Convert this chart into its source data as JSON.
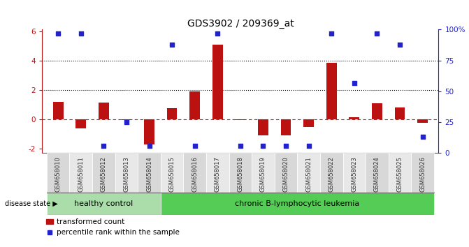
{
  "title": "GDS3902 / 209369_at",
  "samples": [
    "GSM658010",
    "GSM658011",
    "GSM658012",
    "GSM658013",
    "GSM658014",
    "GSM658015",
    "GSM658016",
    "GSM658017",
    "GSM658018",
    "GSM658019",
    "GSM658020",
    "GSM658021",
    "GSM658022",
    "GSM658023",
    "GSM658024",
    "GSM658025",
    "GSM658026"
  ],
  "bar_values": [
    1.2,
    -0.6,
    1.15,
    -0.05,
    -1.7,
    0.75,
    1.9,
    5.1,
    -0.05,
    -1.1,
    -1.1,
    -0.5,
    3.85,
    0.12,
    1.1,
    0.8,
    -0.25
  ],
  "dot_values": [
    97,
    97,
    6,
    25,
    6,
    88,
    6,
    97,
    6,
    6,
    6,
    6,
    97,
    57,
    97,
    88,
    13
  ],
  "ylim_left": [
    -2.3,
    6.1
  ],
  "ylim_right": [
    0,
    100
  ],
  "yticks_left": [
    -2,
    0,
    2,
    4,
    6
  ],
  "yticks_right": [
    0,
    25,
    50,
    75,
    100
  ],
  "ytick_labels_right": [
    "0",
    "25",
    "50",
    "75",
    "100%"
  ],
  "bar_color": "#BB1111",
  "dot_color": "#2222CC",
  "dashed_line_color": "#BB2222",
  "background_plot": "#FFFFFF",
  "healthy_control_count": 5,
  "healthy_label": "healthy control",
  "leukemia_label": "chronic B-lymphocytic leukemia",
  "disease_state_label": "disease state",
  "legend_bar_label": "transformed count",
  "legend_dot_label": "percentile rank within the sample",
  "healthy_bg": "#AADDAA",
  "leukemia_bg": "#55CC55",
  "bar_width": 0.45,
  "xlim": [
    -0.7,
    16.7
  ]
}
